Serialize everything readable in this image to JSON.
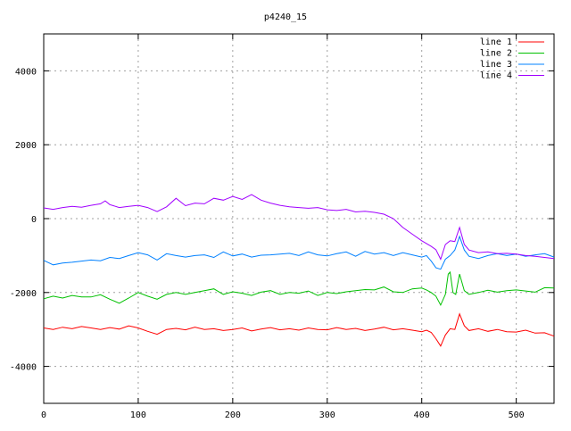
{
  "chart_data": {
    "type": "line",
    "title": "p4240_15",
    "xlabel": "",
    "ylabel": "",
    "xlim": [
      0,
      540
    ],
    "ylim": [
      -5000,
      5000
    ],
    "xticks": [
      0,
      100,
      200,
      300,
      400,
      500
    ],
    "yticks": [
      -4000,
      -2000,
      0,
      2000,
      4000
    ],
    "grid": true,
    "legend_position": "top-right",
    "series": [
      {
        "name": "line 1",
        "color": "#ff0000",
        "x": [
          0,
          10,
          20,
          30,
          40,
          50,
          60,
          70,
          80,
          90,
          100,
          110,
          120,
          130,
          140,
          150,
          160,
          170,
          180,
          190,
          200,
          210,
          220,
          230,
          240,
          250,
          260,
          270,
          280,
          290,
          300,
          310,
          320,
          330,
          340,
          350,
          360,
          370,
          380,
          390,
          400,
          405,
          410,
          415,
          420,
          425,
          430,
          435,
          440,
          445,
          450,
          460,
          470,
          480,
          490,
          500,
          510,
          520,
          530,
          540
        ],
        "y": [
          -2960,
          -3000,
          -2940,
          -2980,
          -2920,
          -2960,
          -3000,
          -2950,
          -2990,
          -2900,
          -2960,
          -3050,
          -3130,
          -3000,
          -2970,
          -3010,
          -2940,
          -3000,
          -2980,
          -3030,
          -3000,
          -2960,
          -3040,
          -2990,
          -2950,
          -3010,
          -2980,
          -3020,
          -2960,
          -3000,
          -3010,
          -2950,
          -3000,
          -2970,
          -3030,
          -2990,
          -2940,
          -3010,
          -2980,
          -3020,
          -3060,
          -3020,
          -3080,
          -3250,
          -3450,
          -3150,
          -2980,
          -3000,
          -2580,
          -2900,
          -3030,
          -2980,
          -3050,
          -3000,
          -3060,
          -3070,
          -3020,
          -3100,
          -3090,
          -3180
        ]
      },
      {
        "name": "line 2",
        "color": "#00c000",
        "x": [
          0,
          10,
          20,
          30,
          40,
          50,
          60,
          70,
          80,
          90,
          100,
          110,
          120,
          130,
          140,
          150,
          160,
          170,
          180,
          190,
          200,
          210,
          220,
          230,
          240,
          250,
          260,
          270,
          280,
          290,
          300,
          310,
          320,
          330,
          340,
          350,
          360,
          370,
          380,
          390,
          400,
          405,
          410,
          415,
          420,
          425,
          428,
          430,
          433,
          436,
          440,
          445,
          450,
          460,
          470,
          480,
          490,
          500,
          510,
          520,
          530,
          540
        ],
        "y": [
          -2170,
          -2100,
          -2150,
          -2080,
          -2120,
          -2120,
          -2060,
          -2180,
          -2290,
          -2150,
          -2000,
          -2100,
          -2180,
          -2050,
          -2000,
          -2050,
          -2000,
          -1950,
          -1900,
          -2050,
          -1980,
          -2020,
          -2080,
          -1990,
          -1950,
          -2050,
          -2000,
          -2020,
          -1960,
          -2080,
          -2000,
          -2030,
          -1980,
          -1950,
          -1920,
          -1930,
          -1850,
          -1980,
          -2000,
          -1900,
          -1880,
          -1930,
          -2000,
          -2100,
          -2340,
          -2050,
          -1500,
          -1450,
          -2000,
          -2050,
          -1500,
          -1950,
          -2050,
          -2000,
          -1940,
          -1990,
          -1950,
          -1930,
          -1960,
          -1990,
          -1870,
          -1880
        ]
      },
      {
        "name": "line 3",
        "color": "#0080ff",
        "x": [
          0,
          10,
          20,
          30,
          40,
          50,
          60,
          70,
          80,
          90,
          100,
          110,
          120,
          130,
          140,
          150,
          160,
          170,
          180,
          190,
          200,
          210,
          220,
          230,
          240,
          250,
          260,
          270,
          280,
          290,
          300,
          310,
          320,
          330,
          340,
          350,
          360,
          370,
          380,
          390,
          400,
          405,
          410,
          415,
          420,
          425,
          430,
          435,
          440,
          445,
          450,
          460,
          470,
          480,
          490,
          500,
          510,
          520,
          530,
          540
        ],
        "y": [
          -1130,
          -1250,
          -1200,
          -1180,
          -1150,
          -1120,
          -1140,
          -1050,
          -1080,
          -1000,
          -920,
          -980,
          -1120,
          -950,
          -1000,
          -1040,
          -1000,
          -980,
          -1050,
          -900,
          -1010,
          -960,
          -1040,
          -990,
          -980,
          -960,
          -940,
          -1000,
          -900,
          -980,
          -1010,
          -950,
          -900,
          -1020,
          -890,
          -960,
          -920,
          -1000,
          -920,
          -980,
          -1040,
          -1000,
          -1150,
          -1330,
          -1370,
          -1100,
          -1000,
          -850,
          -480,
          -850,
          -1020,
          -1080,
          -1000,
          -950,
          -1000,
          -960,
          -1020,
          -980,
          -950,
          -1040
        ]
      },
      {
        "name": "line 4",
        "color": "#a000ff",
        "x": [
          0,
          10,
          20,
          30,
          40,
          50,
          60,
          65,
          70,
          80,
          90,
          100,
          110,
          120,
          130,
          140,
          150,
          160,
          170,
          180,
          190,
          200,
          210,
          220,
          230,
          240,
          250,
          260,
          270,
          280,
          290,
          300,
          310,
          320,
          330,
          340,
          350,
          360,
          370,
          380,
          390,
          400,
          410,
          415,
          420,
          425,
          430,
          435,
          440,
          445,
          450,
          460,
          470,
          480,
          490,
          500,
          510,
          520,
          530,
          540
        ],
        "y": [
          290,
          250,
          300,
          330,
          310,
          360,
          400,
          480,
          380,
          300,
          330,
          360,
          300,
          190,
          320,
          550,
          350,
          420,
          400,
          550,
          500,
          600,
          520,
          650,
          500,
          420,
          360,
          320,
          300,
          280,
          300,
          240,
          220,
          250,
          180,
          200,
          170,
          120,
          0,
          -240,
          -420,
          -600,
          -750,
          -840,
          -1100,
          -700,
          -600,
          -620,
          -240,
          -700,
          -850,
          -920,
          -900,
          -950,
          -940,
          -960,
          -1000,
          -1020,
          -1050,
          -1080
        ]
      }
    ]
  }
}
